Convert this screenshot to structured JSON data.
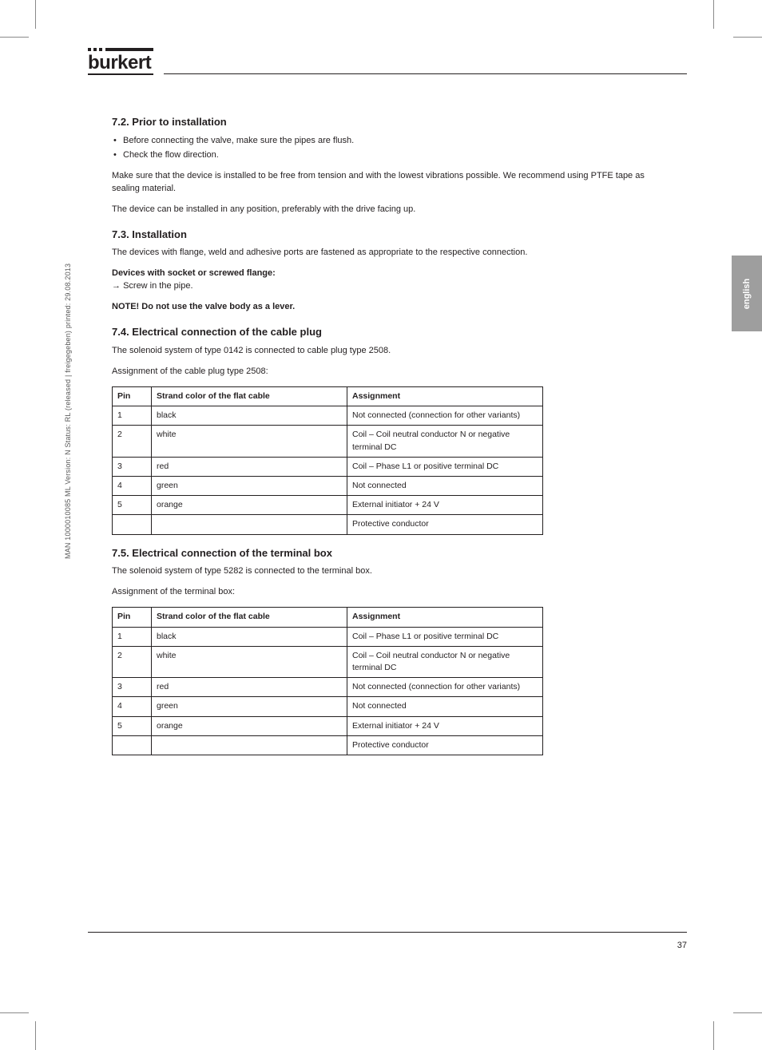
{
  "meta": {
    "sideText": "MAN 1000010085 ML  Version: N  Status: RL (released | freigegeben)  printed: 29.08.2013",
    "pageNumber": "37",
    "tabLabel": "english"
  },
  "logo": {
    "word": "burkert"
  },
  "sections": {
    "s1": {
      "h": "7.2.  Prior to installation",
      "list": [
        "Before connecting the valve, make sure the pipes are flush.",
        "Check the flow direction."
      ],
      "p1": "Make sure that the device is installed to be free from tension and with the lowest vibrations possible. We recommend using PTFE tape as sealing material.",
      "p2": "The device can be installed in any position, preferably with the drive facing up."
    },
    "s2": {
      "h": "7.3.  Installation",
      "p1": "The devices with flange, weld and adhesive ports are fastened as appropriate to the respective connection.",
      "p2a": "Devices with socket or screwed flange:",
      "p2b": "Screw in the pipe.",
      "note": "NOTE! Do not use the valve body as a lever."
    },
    "s3": {
      "h": "7.4.  Electrical connection of the cable plug",
      "p1": "The solenoid system of type 0142 is connected to cable plug type 2508.",
      "p2": "Assignment of the cable plug type 2508:"
    },
    "s4": {
      "h": "7.5.  Electrical connection of the terminal box",
      "p1": "The solenoid system of type 5282 is connected to the terminal box.",
      "p2": "Assignment of the terminal box:"
    }
  },
  "tables": {
    "t1": {
      "headers": [
        "Pin",
        "Strand color of the flat cable",
        "Assignment"
      ],
      "rows": [
        [
          "1",
          "black",
          "Not connected (connection for other variants)"
        ],
        [
          "2",
          "white",
          "Coil – Coil neutral conductor N or negative terminal DC"
        ],
        [
          "3",
          "red",
          "Coil – Phase L1 or positive terminal DC"
        ],
        [
          "4",
          "green",
          "Not connected"
        ],
        [
          "5",
          "orange",
          "External initiator + 24 V"
        ],
        [
          "",
          "",
          "Protective conductor"
        ]
      ]
    },
    "t2": {
      "headers": [
        "Pin",
        "Strand color of the flat cable",
        "Assignment"
      ],
      "rows": [
        [
          "1",
          "black",
          "Coil – Phase L1 or positive terminal DC"
        ],
        [
          "2",
          "white",
          "Coil – Coil neutral conductor N or negative terminal DC"
        ],
        [
          "3",
          "red",
          "Not connected (connection for other variants)"
        ],
        [
          "4",
          "green",
          "Not connected"
        ],
        [
          "5",
          "orange",
          "External initiator + 24 V"
        ],
        [
          "",
          "",
          "Protective conductor"
        ]
      ]
    }
  },
  "colors": {
    "text": "#231f20",
    "rule": "#231f20",
    "tabBg": "#9e9e9e",
    "tabText": "#ffffff",
    "metaText": "#5a5a5a",
    "cropMark": "#8a8a8a"
  }
}
